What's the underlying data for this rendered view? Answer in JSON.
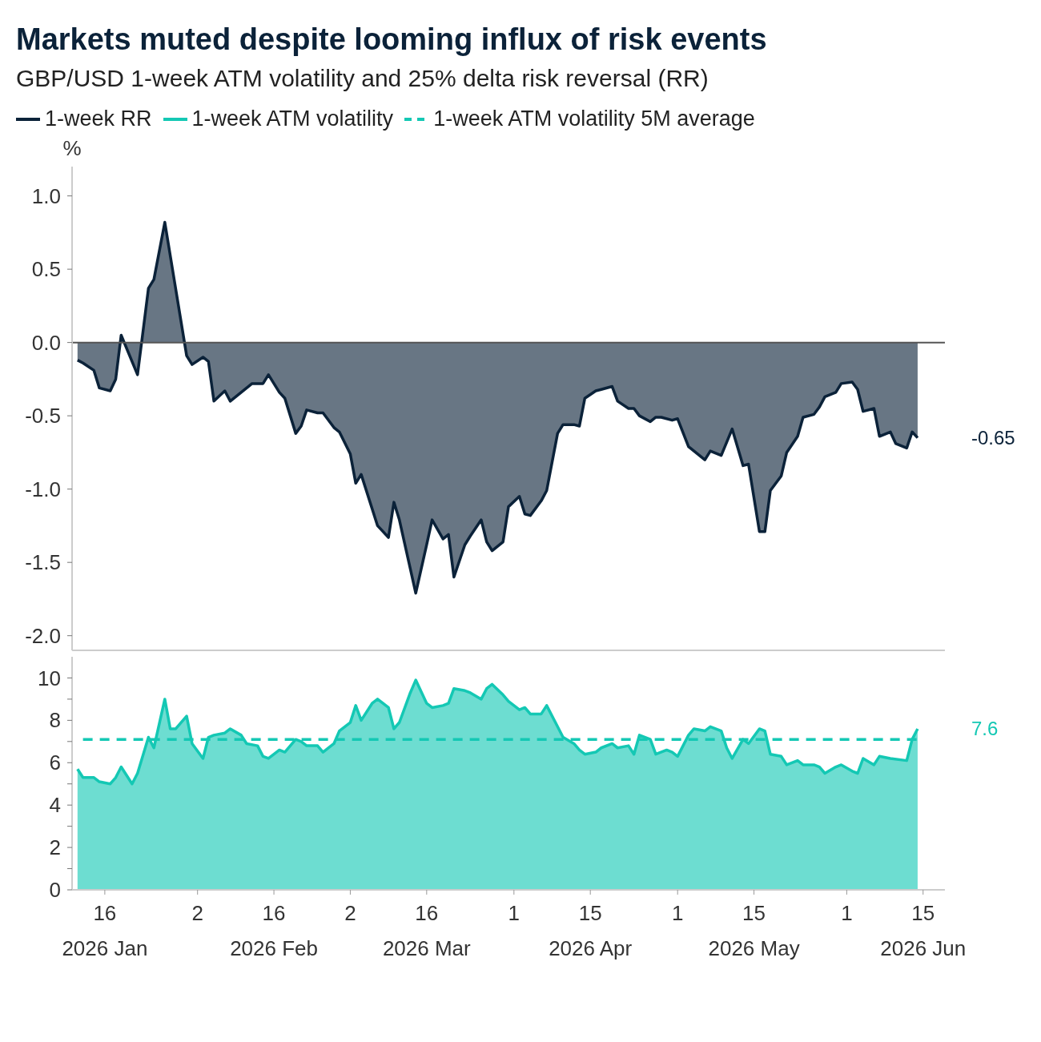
{
  "chart_data": [
    {
      "type": "area",
      "title": "Markets muted despite looming influx of risk events",
      "subtitle": "GBP/USD 1-week ATM volatility and 25% delta risk reversal (RR)",
      "ylabel": "%",
      "legend": "top left",
      "tick_labels": "y",
      "xlim": [
        "2026-01-10",
        "2026-06-19"
      ],
      "ylim": [
        -2.1,
        1.2
      ],
      "yticks": [
        {
          "value": 1,
          "label": "1.0"
        },
        0.5,
        {
          "value": 0,
          "label": "0.0"
        },
        -0.5,
        {
          "value": -1,
          "label": "-1.0"
        },
        -1.5,
        {
          "value": -2,
          "label": "-2.0"
        }
      ],
      "ref_lines": [
        {
          "axis": "y",
          "value": 0,
          "color": "#555555"
        }
      ],
      "annotations": [
        {
          "text": "-0.65",
          "x": "2026-06-14",
          "y": -0.65
        }
      ],
      "series": [
        {
          "name": "1-week RR",
          "color": "#0b2239",
          "x": [
            "2026-01-11",
            "2026-01-12",
            "2026-01-14",
            "2026-01-15",
            "2026-01-17",
            "2026-01-18",
            "2026-01-19",
            "2026-01-22",
            "2026-01-24",
            "2026-01-25",
            "2026-01-27",
            "2026-01-31",
            "2026-02-01",
            "2026-02-03",
            "2026-02-04",
            "2026-02-05",
            "2026-02-07",
            "2026-02-08",
            "2026-02-12",
            "2026-02-14",
            "2026-02-15",
            "2026-02-17",
            "2026-02-18",
            "2026-02-20",
            "2026-02-21",
            "2026-02-22",
            "2026-02-24",
            "2026-02-25",
            "2026-02-27",
            "2026-02-28",
            "2026-03-02",
            "2026-03-03",
            "2026-03-04",
            "2026-03-07",
            "2026-03-09",
            "2026-03-10",
            "2026-03-11",
            "2026-03-14",
            "2026-03-16",
            "2026-03-17",
            "2026-03-19",
            "2026-03-20",
            "2026-03-21",
            "2026-03-23",
            "2026-03-24",
            "2026-03-26",
            "2026-03-27",
            "2026-03-28",
            "2026-03-30",
            "2026-03-31",
            "2026-04-02",
            "2026-04-03",
            "2026-04-04",
            "2026-04-06",
            "2026-04-07",
            "2026-04-09",
            "2026-04-10",
            "2026-04-12",
            "2026-04-13",
            "2026-04-14",
            "2026-04-16",
            "2026-04-17",
            "2026-04-19",
            "2026-04-20",
            "2026-04-22",
            "2026-04-23",
            "2026-04-24",
            "2026-04-26",
            "2026-04-27",
            "2026-04-28",
            "2026-04-30",
            "2026-05-01",
            "2026-05-03",
            "2026-05-04",
            "2026-05-06",
            "2026-05-07",
            "2026-05-09",
            "2026-05-11",
            "2026-05-13",
            "2026-05-14",
            "2026-05-16",
            "2026-05-17",
            "2026-05-18",
            "2026-05-20",
            "2026-05-21",
            "2026-05-23",
            "2026-05-24",
            "2026-05-26",
            "2026-05-27",
            "2026-05-28",
            "2026-05-30",
            "2026-05-31",
            "2026-06-02",
            "2026-06-03",
            "2026-06-04",
            "2026-06-06",
            "2026-06-07",
            "2026-06-09",
            "2026-06-10",
            "2026-06-12",
            "2026-06-13",
            "2026-06-14"
          ],
          "values": [
            -0.12,
            -0.14,
            -0.19,
            -0.31,
            -0.33,
            -0.25,
            0.05,
            -0.22,
            0.37,
            0.43,
            0.82,
            -0.09,
            -0.15,
            -0.1,
            -0.13,
            -0.4,
            -0.33,
            -0.4,
            -0.28,
            -0.28,
            -0.22,
            -0.34,
            -0.38,
            -0.62,
            -0.57,
            -0.46,
            -0.48,
            -0.48,
            -0.58,
            -0.61,
            -0.76,
            -0.96,
            -0.9,
            -1.25,
            -1.33,
            -1.09,
            -1.21,
            -1.71,
            -1.38,
            -1.21,
            -1.34,
            -1.31,
            -1.6,
            -1.38,
            -1.32,
            -1.21,
            -1.36,
            -1.42,
            -1.36,
            -1.12,
            -1.05,
            -1.17,
            -1.18,
            -1.08,
            -1.01,
            -0.62,
            -0.56,
            -0.56,
            -0.57,
            -0.38,
            -0.33,
            -0.32,
            -0.3,
            -0.4,
            -0.45,
            -0.45,
            -0.5,
            -0.54,
            -0.51,
            -0.51,
            -0.53,
            -0.52,
            -0.71,
            -0.74,
            -0.8,
            -0.74,
            -0.77,
            -0.59,
            -0.84,
            -0.83,
            -1.29,
            -1.29,
            -1.01,
            -0.91,
            -0.75,
            -0.64,
            -0.51,
            -0.49,
            -0.44,
            -0.37,
            -0.34,
            -0.28,
            -0.27,
            -0.32,
            -0.47,
            -0.45,
            -0.64,
            -0.61,
            -0.69,
            -0.72,
            -0.61,
            -0.65
          ]
        }
      ]
    },
    {
      "type": "area",
      "legend": "top left",
      "xlim": [
        "2026-01-10",
        "2026-06-19"
      ],
      "ylim": [
        0,
        11
      ],
      "yticks": [
        0,
        {
          "value": 1,
          "label": null
        },
        2,
        {
          "value": 3,
          "label": null
        },
        4,
        {
          "value": 5,
          "label": null
        },
        6,
        {
          "value": 7,
          "label": null
        },
        8,
        {
          "value": 9,
          "label": null
        },
        10
      ],
      "xticks": [
        {
          "value": "2026-01-16",
          "label": "16\n2026 Jan"
        },
        {
          "value": "2026-02-02",
          "label": "2"
        },
        {
          "value": "2026-02-16",
          "label": "16\n2026 Feb"
        },
        {
          "value": "2026-03-02",
          "label": "2"
        },
        {
          "value": "2026-03-16",
          "label": "16\n2026 Mar"
        },
        {
          "value": "2026-04-01",
          "label": "1"
        },
        {
          "value": "2026-04-15",
          "label": "15\n2026 Apr"
        },
        {
          "value": "2026-05-01",
          "label": "1"
        },
        {
          "value": "2026-05-15",
          "label": "15\n2026 May"
        },
        {
          "value": "2026-06-01",
          "label": "1"
        },
        {
          "value": "2026-06-15",
          "label": "15\n2026 Jun"
        }
      ],
      "annotations": [
        {
          "text": "7.6",
          "x": "2026-06-14",
          "y": 7.6
        }
      ],
      "series": [
        {
          "name": "1-week ATM volatility",
          "color": "#14c8b4",
          "x": [
            "2026-01-11",
            "2026-01-12",
            "2026-01-14",
            "2026-01-15",
            "2026-01-17",
            "2026-01-18",
            "2026-01-19",
            "2026-01-21",
            "2026-01-22",
            "2026-01-24",
            "2026-01-25",
            "2026-01-27",
            "2026-01-28",
            "2026-01-29",
            "2026-01-31",
            "2026-02-01",
            "2026-02-03",
            "2026-02-04",
            "2026-02-05",
            "2026-02-07",
            "2026-02-08",
            "2026-02-10",
            "2026-02-11",
            "2026-02-13",
            "2026-02-14",
            "2026-02-15",
            "2026-02-17",
            "2026-02-18",
            "2026-02-20",
            "2026-02-21",
            "2026-02-22",
            "2026-02-24",
            "2026-02-25",
            "2026-02-27",
            "2026-02-28",
            "2026-03-02",
            "2026-03-03",
            "2026-03-04",
            "2026-03-06",
            "2026-03-07",
            "2026-03-09",
            "2026-03-10",
            "2026-03-11",
            "2026-03-13",
            "2026-03-14",
            "2026-03-16",
            "2026-03-17",
            "2026-03-19",
            "2026-03-20",
            "2026-03-21",
            "2026-03-23",
            "2026-03-24",
            "2026-03-26",
            "2026-03-27",
            "2026-03-28",
            "2026-03-30",
            "2026-03-31",
            "2026-04-02",
            "2026-04-03",
            "2026-04-04",
            "2026-04-06",
            "2026-04-07",
            "2026-04-09",
            "2026-04-10",
            "2026-04-12",
            "2026-04-13",
            "2026-04-14",
            "2026-04-16",
            "2026-04-17",
            "2026-04-19",
            "2026-04-20",
            "2026-04-22",
            "2026-04-23",
            "2026-04-24",
            "2026-04-26",
            "2026-04-27",
            "2026-04-29",
            "2026-04-30",
            "2026-05-01",
            "2026-05-03",
            "2026-05-04",
            "2026-05-06",
            "2026-05-07",
            "2026-05-09",
            "2026-05-10",
            "2026-05-11",
            "2026-05-13",
            "2026-05-14",
            "2026-05-16",
            "2026-05-17",
            "2026-05-18",
            "2026-05-20",
            "2026-05-21",
            "2026-05-23",
            "2026-05-24",
            "2026-05-26",
            "2026-05-27",
            "2026-05-28",
            "2026-05-30",
            "2026-05-31",
            "2026-06-02",
            "2026-06-03",
            "2026-06-04",
            "2026-06-06",
            "2026-06-07",
            "2026-06-09",
            "2026-06-12",
            "2026-06-13",
            "2026-06-14"
          ],
          "values": [
            5.7,
            5.3,
            5.3,
            5.1,
            5.0,
            5.3,
            5.8,
            5.0,
            5.5,
            7.2,
            6.7,
            9.0,
            7.6,
            7.6,
            8.2,
            6.9,
            6.2,
            7.2,
            7.3,
            7.4,
            7.6,
            7.3,
            6.9,
            6.8,
            6.3,
            6.2,
            6.6,
            6.5,
            7.1,
            7.0,
            6.8,
            6.8,
            6.5,
            6.9,
            7.5,
            7.9,
            8.7,
            8.0,
            8.8,
            9.0,
            8.6,
            7.6,
            7.9,
            9.3,
            9.9,
            8.8,
            8.6,
            8.7,
            8.8,
            9.5,
            9.4,
            9.3,
            9.0,
            9.5,
            9.7,
            9.2,
            8.9,
            8.5,
            8.6,
            8.3,
            8.3,
            8.7,
            7.7,
            7.2,
            6.9,
            6.6,
            6.4,
            6.5,
            6.7,
            6.9,
            6.7,
            6.8,
            6.4,
            7.3,
            7.1,
            6.4,
            6.6,
            6.5,
            6.3,
            7.3,
            7.6,
            7.5,
            7.7,
            7.5,
            6.7,
            6.2,
            7.1,
            6.9,
            7.6,
            7.5,
            6.4,
            6.3,
            5.9,
            6.1,
            5.9,
            5.9,
            5.8,
            5.5,
            5.8,
            5.9,
            5.6,
            5.5,
            6.2,
            5.9,
            6.3,
            6.2,
            6.1,
            7.1,
            7.6
          ]
        },
        {
          "name": "1-week ATM volatility 5M average",
          "type": "line",
          "line_style": "dashed",
          "color": "#14c8b4",
          "x": [
            "2026-01-12",
            "2026-06-14"
          ],
          "values": [
            7.1,
            7.1
          ]
        }
      ]
    }
  ]
}
